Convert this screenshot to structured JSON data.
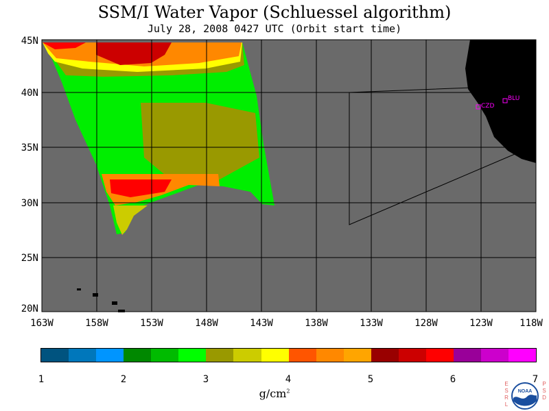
{
  "title": "SSM/I Water Vapor (Schluessel algorithm)",
  "subtitle": "July 28, 2008  0427 UTC  (Orbit start time)",
  "lat_labels": [
    "45N",
    "40N",
    "35N",
    "30N",
    "25N",
    "20N"
  ],
  "lon_labels": [
    "163W",
    "158W",
    "153W",
    "148W",
    "143W",
    "138W",
    "133W",
    "128W",
    "123W",
    "118W"
  ],
  "stations": [
    "CZD",
    "BLU"
  ],
  "colorbar": {
    "ticks": [
      "1",
      "2",
      "3",
      "4",
      "5",
      "6",
      "7"
    ],
    "units": "g/cm",
    "units_exp": "2",
    "colors": [
      "#00537f",
      "#0077bb",
      "#0095ff",
      "#008800",
      "#00bb00",
      "#00ff00",
      "#999900",
      "#cccc00",
      "#ffff00",
      "#ff5500",
      "#ff8800",
      "#ffa500",
      "#990000",
      "#cc0000",
      "#ff0000",
      "#990099",
      "#cc00cc",
      "#ff00ff"
    ]
  },
  "logo": {
    "left_text": "ESRL",
    "right_text": "PSD",
    "badge": "NOAA"
  },
  "colors": {
    "ocean": "#6a6a6a",
    "land": "#000000",
    "station": "#ff00ff"
  }
}
